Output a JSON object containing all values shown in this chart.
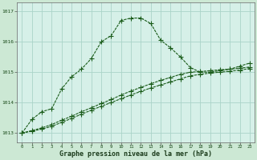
{
  "title": "Graphe pression niveau de la mer (hPa)",
  "background_color": "#cce8d4",
  "plot_bg_color": "#d6f0e8",
  "grid_color": "#aad4c8",
  "line_color": "#1a5c1a",
  "xlim": [
    -0.5,
    23.5
  ],
  "ylim": [
    1012.7,
    1017.3
  ],
  "yticks": [
    1013,
    1014,
    1015,
    1016,
    1017
  ],
  "xticks": [
    0,
    1,
    2,
    3,
    4,
    5,
    6,
    7,
    8,
    9,
    10,
    11,
    12,
    13,
    14,
    15,
    16,
    17,
    18,
    19,
    20,
    21,
    22,
    23
  ],
  "series1_x": [
    0,
    1,
    2,
    3,
    4,
    5,
    6,
    7,
    8,
    9,
    10,
    11,
    12,
    13,
    14,
    15,
    16,
    17,
    18,
    19,
    20,
    21,
    22,
    23
  ],
  "series1": [
    1013.0,
    1013.45,
    1013.7,
    1013.8,
    1014.45,
    1014.85,
    1015.1,
    1015.45,
    1016.0,
    1016.2,
    1016.7,
    1016.78,
    1016.78,
    1016.6,
    1016.05,
    1015.8,
    1015.5,
    1015.15,
    1015.0,
    1015.0,
    1015.05,
    1015.1,
    1015.2,
    1015.3
  ],
  "series2_x": [
    0,
    1,
    2,
    3,
    4,
    5,
    6,
    7,
    8,
    9,
    10,
    11,
    12,
    13,
    14,
    15,
    16,
    17,
    18,
    19,
    20,
    21,
    22,
    23
  ],
  "series2": [
    1013.0,
    1013.08,
    1013.17,
    1013.28,
    1013.42,
    1013.55,
    1013.7,
    1013.83,
    1013.97,
    1014.1,
    1014.25,
    1014.38,
    1014.5,
    1014.62,
    1014.73,
    1014.83,
    1014.93,
    1015.0,
    1015.02,
    1015.05,
    1015.08,
    1015.1,
    1015.13,
    1015.17
  ],
  "series3_x": [
    0,
    1,
    2,
    3,
    4,
    5,
    6,
    7,
    8,
    9,
    10,
    11,
    12,
    13,
    14,
    15,
    16,
    17,
    18,
    19,
    20,
    21,
    22,
    23
  ],
  "series3": [
    1013.0,
    1013.06,
    1013.13,
    1013.22,
    1013.35,
    1013.48,
    1013.62,
    1013.75,
    1013.88,
    1014.0,
    1014.13,
    1014.25,
    1014.37,
    1014.48,
    1014.58,
    1014.68,
    1014.78,
    1014.88,
    1014.93,
    1014.97,
    1015.0,
    1015.03,
    1015.07,
    1015.12
  ]
}
